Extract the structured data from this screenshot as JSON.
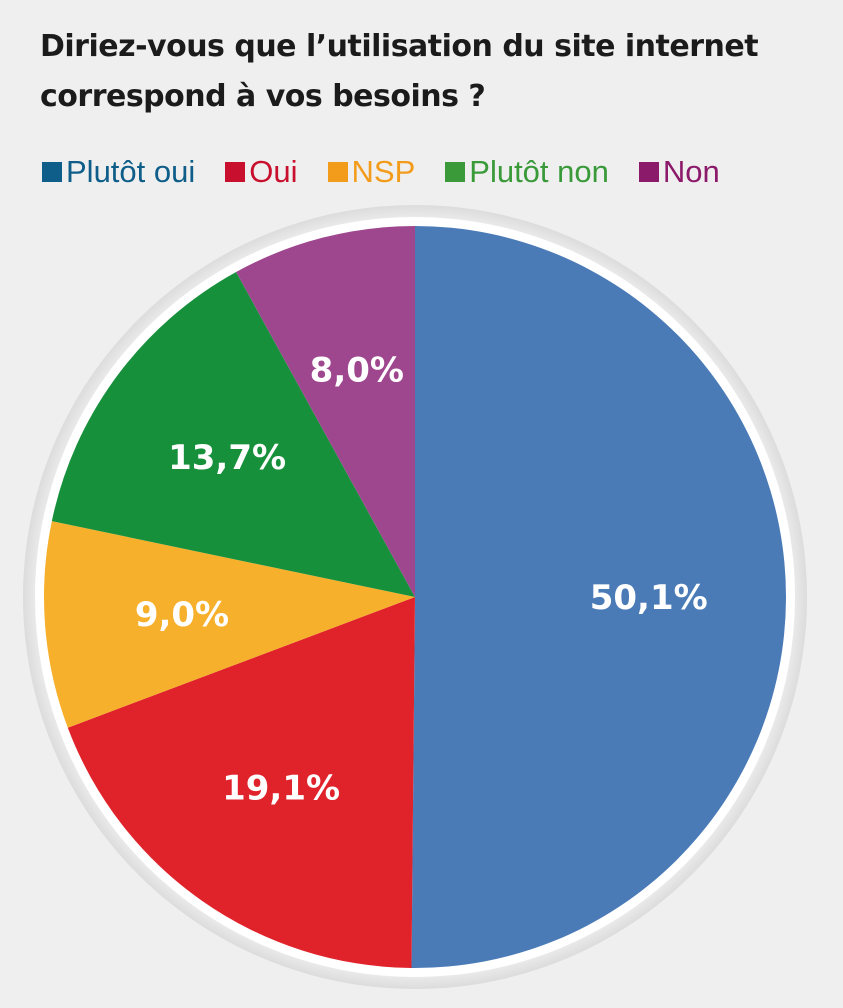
{
  "title": {
    "line1": "Diriez-vous que l’utilisation du site internet",
    "line2": "correspond à vos besoins ?"
  },
  "legend": [
    {
      "label": "Plutôt oui",
      "swatch": "#0f5e8a",
      "text": "#0f5e8a"
    },
    {
      "label": "Oui",
      "swatch": "#c8102e",
      "text": "#c8102e"
    },
    {
      "label": "NSP",
      "swatch": "#f39c1c",
      "text": "#f39c1c"
    },
    {
      "label": "Plutôt non",
      "swatch": "#3a9a3a",
      "text": "#3a9a3a"
    },
    {
      "label": "Non",
      "swatch": "#8c1a6a",
      "text": "#8c1a6a"
    }
  ],
  "chart_data": {
    "type": "pie",
    "title": "Diriez-vous que l’utilisation du site internet correspond à vos besoins ?",
    "slices": [
      {
        "name": "Plutôt oui",
        "value": 50.1,
        "label": "50,1%",
        "color": "#4a7bb7"
      },
      {
        "name": "Oui",
        "value": 19.1,
        "label": "19,1%",
        "color": "#e0222b"
      },
      {
        "name": "NSP",
        "value": 9.0,
        "label": "9,0%",
        "color": "#f6b02c"
      },
      {
        "name": "Plutôt non",
        "value": 13.7,
        "label": "13,7%",
        "color": "#17903c"
      },
      {
        "name": "Non",
        "value": 8.0,
        "label": "8,0%",
        "color": "#9e478e"
      }
    ],
    "start": "12 o'clock",
    "direction": "clockwise",
    "legend_position": "top"
  }
}
